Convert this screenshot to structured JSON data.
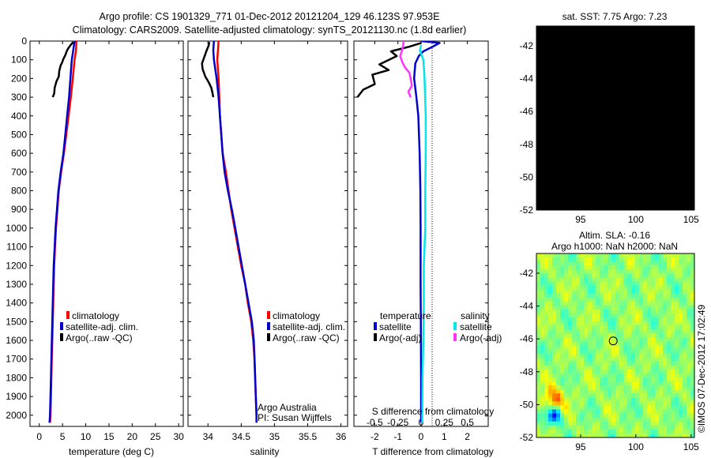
{
  "header": {
    "line1": "Argo profile: CS 1901329_771 01-Dec-2012 20121204_129 46.123S 97.953E",
    "line2": "Climatology: CARS2009. Satellite-adjusted climatology: synTS_20121130.nc (1.8d earlier)"
  },
  "colors": {
    "climatology": "#ff0000",
    "satellite": "#0000cc",
    "argo": "#000000",
    "satellite_s": "#00e5ee",
    "argo_s": "#ff33ff"
  },
  "chart_data": [
    {
      "id": "temperature",
      "type": "line",
      "xlabel": "temperature (deg C)",
      "ylabel": "",
      "xlim": [
        -2,
        31
      ],
      "ylim": [
        2060,
        0
      ],
      "xticks": [
        "0",
        "5",
        "10",
        "15",
        "20",
        "25",
        "30"
      ],
      "yticks": [
        "0",
        "100",
        "200",
        "300",
        "400",
        "500",
        "600",
        "700",
        "800",
        "900",
        "1000",
        "1100",
        "1200",
        "1300",
        "1400",
        "1500",
        "1600",
        "1700",
        "1800",
        "1900",
        "2000"
      ],
      "legend": {
        "placement": "bottom-center",
        "entries": [
          "climatology",
          "satellite-adj. clim.",
          "Argo(..raw -QC)"
        ]
      },
      "series": [
        {
          "name": "climatology",
          "points": [
            [
              8.0,
              0
            ],
            [
              7.9,
              50
            ],
            [
              7.6,
              100
            ],
            [
              7.2,
              200
            ],
            [
              6.8,
              300
            ],
            [
              6.3,
              400
            ],
            [
              5.8,
              500
            ],
            [
              5.3,
              600
            ],
            [
              4.7,
              700
            ],
            [
              4.2,
              800
            ],
            [
              3.9,
              900
            ],
            [
              3.6,
              1000
            ],
            [
              3.4,
              1100
            ],
            [
              3.2,
              1200
            ],
            [
              3.1,
              1300
            ],
            [
              3.0,
              1400
            ],
            [
              2.9,
              1500
            ],
            [
              2.8,
              1600
            ],
            [
              2.7,
              1700
            ],
            [
              2.6,
              1800
            ],
            [
              2.5,
              1900
            ],
            [
              2.4,
              2000
            ],
            [
              2.3,
              2040
            ]
          ]
        },
        {
          "name": "satellite-adj. clim.",
          "points": [
            [
              7.6,
              0
            ],
            [
              7.3,
              50
            ],
            [
              7.0,
              100
            ],
            [
              6.7,
              200
            ],
            [
              6.4,
              300
            ],
            [
              6.0,
              400
            ],
            [
              5.6,
              500
            ],
            [
              5.2,
              600
            ],
            [
              4.6,
              700
            ],
            [
              4.1,
              800
            ],
            [
              3.8,
              900
            ],
            [
              3.5,
              1000
            ],
            [
              3.3,
              1100
            ],
            [
              3.1,
              1200
            ],
            [
              3.0,
              1300
            ],
            [
              2.9,
              1400
            ],
            [
              2.8,
              1500
            ],
            [
              2.7,
              1600
            ],
            [
              2.6,
              1700
            ],
            [
              2.5,
              1800
            ],
            [
              2.4,
              1900
            ],
            [
              2.3,
              2000
            ],
            [
              2.2,
              2040
            ]
          ]
        },
        {
          "name": "Argo(..raw -QC)",
          "points": [
            [
              7.3,
              5
            ],
            [
              6.8,
              20
            ],
            [
              6.2,
              40
            ],
            [
              5.9,
              55
            ],
            [
              5.6,
              75
            ],
            [
              5.2,
              95
            ],
            [
              4.9,
              115
            ],
            [
              4.6,
              130
            ],
            [
              4.3,
              160
            ],
            [
              4.2,
              190
            ],
            [
              3.7,
              215
            ],
            [
              3.3,
              250
            ],
            [
              3.2,
              280
            ],
            [
              2.9,
              300
            ]
          ]
        }
      ]
    },
    {
      "id": "salinity",
      "type": "line",
      "xlabel": "salinity",
      "ylabel": "",
      "xlim": [
        33.7,
        36.1
      ],
      "ylim": [
        2060,
        0
      ],
      "xticks": [
        "34",
        "34.5",
        "35",
        "35.5",
        "36"
      ],
      "legend": {
        "placement": "bottom-right",
        "entries": [
          "climatology",
          "satellite-adj. clim.",
          "Argo(..raw -QC)"
        ]
      },
      "annotation": [
        "Argo Australia",
        "PI: Susan Wijffels"
      ],
      "series": [
        {
          "name": "climatology",
          "points": [
            [
              34.16,
              0
            ],
            [
              34.15,
              50
            ],
            [
              34.14,
              100
            ],
            [
              34.16,
              200
            ],
            [
              34.17,
              300
            ],
            [
              34.18,
              400
            ],
            [
              34.2,
              500
            ],
            [
              34.22,
              600
            ],
            [
              34.27,
              700
            ],
            [
              34.31,
              800
            ],
            [
              34.35,
              900
            ],
            [
              34.4,
              1000
            ],
            [
              34.45,
              1100
            ],
            [
              34.5,
              1200
            ],
            [
              34.56,
              1300
            ],
            [
              34.6,
              1400
            ],
            [
              34.65,
              1500
            ],
            [
              34.68,
              1600
            ],
            [
              34.7,
              1700
            ],
            [
              34.71,
              1800
            ],
            [
              34.72,
              1900
            ],
            [
              34.73,
              2000
            ],
            [
              34.73,
              2040
            ]
          ]
        },
        {
          "name": "satellite-adj. clim.",
          "points": [
            [
              34.09,
              0
            ],
            [
              34.08,
              50
            ],
            [
              34.09,
              100
            ],
            [
              34.13,
              200
            ],
            [
              34.16,
              300
            ],
            [
              34.18,
              400
            ],
            [
              34.2,
              500
            ],
            [
              34.22,
              600
            ],
            [
              34.25,
              700
            ],
            [
              34.3,
              800
            ],
            [
              34.36,
              900
            ],
            [
              34.41,
              1000
            ],
            [
              34.46,
              1100
            ],
            [
              34.51,
              1200
            ],
            [
              34.56,
              1300
            ],
            [
              34.61,
              1400
            ],
            [
              34.66,
              1500
            ],
            [
              34.69,
              1600
            ],
            [
              34.7,
              1700
            ],
            [
              34.71,
              1800
            ],
            [
              34.72,
              1900
            ],
            [
              34.73,
              2000
            ],
            [
              34.73,
              2040
            ]
          ]
        },
        {
          "name": "Argo(..raw -QC)",
          "points": [
            [
              34.02,
              5
            ],
            [
              34.01,
              25
            ],
            [
              33.98,
              50
            ],
            [
              33.94,
              90
            ],
            [
              33.91,
              120
            ],
            [
              33.92,
              150
            ],
            [
              33.96,
              190
            ],
            [
              34.01,
              220
            ],
            [
              34.05,
              250
            ],
            [
              34.07,
              280
            ],
            [
              34.08,
              300
            ]
          ]
        }
      ]
    },
    {
      "id": "difference",
      "type": "line",
      "xlabel": "T difference from climatology",
      "xlabel2": "S difference from climatology",
      "xlim": [
        -2.9,
        2.9
      ],
      "ylim": [
        2060,
        0
      ],
      "xticks": [
        "-2",
        "-1",
        "0",
        "1",
        "2"
      ],
      "xticks_s": [
        "-0.5",
        "-0.25",
        "0",
        "0.25",
        "0.5"
      ],
      "legend": {
        "placement": "bottom",
        "temperature_title": "temperature",
        "salinity_title": "salinity",
        "entries_t": [
          "satellite",
          "Argo(-adj)"
        ],
        "entries_s": [
          "satellite",
          "Argo(-adj)"
        ]
      },
      "series": [
        {
          "name": "satellite",
          "group": "temperature",
          "points": [
            [
              0,
              0
            ],
            [
              0.8,
              10
            ],
            [
              0.5,
              30
            ],
            [
              0.1,
              55
            ],
            [
              -0.1,
              80
            ],
            [
              -0.25,
              120
            ],
            [
              -0.3,
              200
            ],
            [
              -0.2,
              300
            ],
            [
              -0.12,
              400
            ],
            [
              -0.06,
              600
            ],
            [
              -0.03,
              800
            ],
            [
              -0.02,
              1000
            ],
            [
              -0.02,
              1300
            ],
            [
              -0.01,
              1500
            ],
            [
              0,
              1800
            ],
            [
              0,
              2040
            ]
          ]
        },
        {
          "name": "Argo(-adj)",
          "group": "temperature",
          "points": [
            [
              0,
              10
            ],
            [
              -0.5,
              30
            ],
            [
              -1.3,
              55
            ],
            [
              -1.05,
              80
            ],
            [
              -1.8,
              125
            ],
            [
              -1.4,
              155
            ],
            [
              -2.1,
              180
            ],
            [
              -2.0,
              230
            ],
            [
              -2.5,
              260
            ],
            [
              -2.75,
              300
            ]
          ]
        },
        {
          "name": "satellite",
          "group": "salinity",
          "points": [
            [
              0,
              20
            ],
            [
              -0.05,
              50
            ],
            [
              0.1,
              100
            ],
            [
              0.15,
              200
            ],
            [
              0.2,
              400
            ],
            [
              0.2,
              600
            ],
            [
              0.18,
              800
            ],
            [
              0.18,
              1000
            ],
            [
              0.12,
              1200
            ],
            [
              0.12,
              1400
            ],
            [
              0.1,
              1600
            ],
            [
              0.06,
              1800
            ],
            [
              0.05,
              2000
            ],
            [
              0.05,
              2040
            ]
          ]
        },
        {
          "name": "Argo(-adj)",
          "group": "salinity",
          "points": [
            [
              -0.75,
              0
            ],
            [
              -0.8,
              40
            ],
            [
              -0.9,
              80
            ],
            [
              -0.82,
              110
            ],
            [
              -0.7,
              140
            ],
            [
              -0.5,
              170
            ],
            [
              -0.45,
              200
            ],
            [
              -0.4,
              240
            ],
            [
              -0.55,
              270
            ],
            [
              -0.45,
              300
            ]
          ]
        }
      ]
    },
    {
      "id": "sst-map",
      "type": "heatmap",
      "title": "sat. SST: 7.75 Argo: 7.23",
      "xticks": [
        "95",
        "100",
        "105"
      ],
      "yticks": [
        "-42",
        "-44",
        "-46",
        "-48",
        "-50",
        "-52"
      ],
      "xlim": [
        91,
        105.3
      ],
      "ylim": [
        -52,
        -40.8
      ],
      "marker": {
        "lon": 97.953,
        "lat": -46.123
      }
    },
    {
      "id": "sla-map",
      "type": "heatmap",
      "title": "Altim. SLA: -0.16",
      "subtitle": "Argo h1000: NaN h2000: NaN",
      "xticks": [
        "95",
        "100",
        "105"
      ],
      "yticks": [
        "-42",
        "-44",
        "-46",
        "-48",
        "-50",
        "-52"
      ],
      "xlim": [
        91,
        105.3
      ],
      "ylim": [
        -52,
        -40.8
      ],
      "marker": {
        "lon": 97.953,
        "lat": -46.123
      }
    }
  ],
  "credit": "©IMOS 07-Dec-2012 17:02:49"
}
